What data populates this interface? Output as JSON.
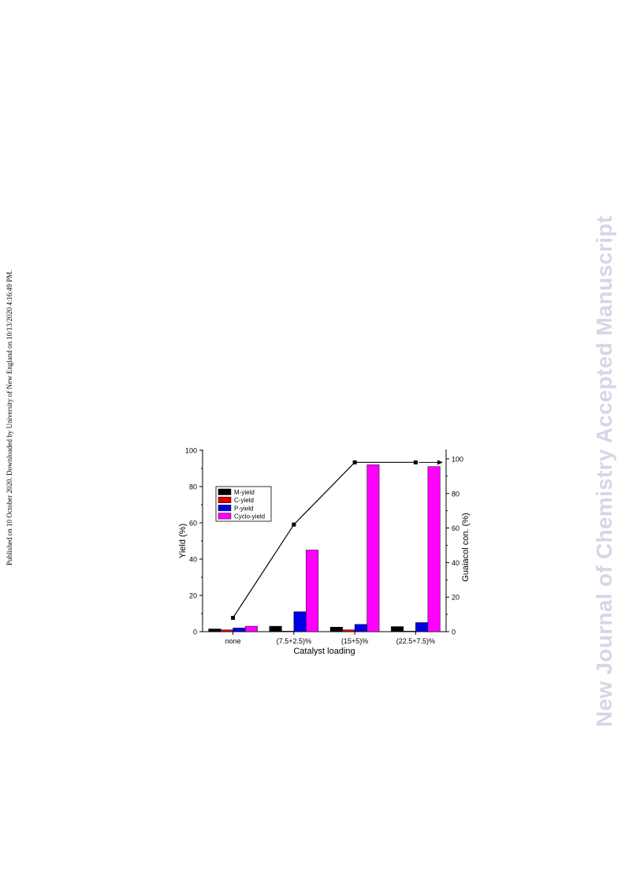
{
  "side_note": "Published on 10 October 2020. Downloaded by University of New England on 10/13/2020 4:16:49 PM.",
  "watermark": "New Journal of Chemistry Accepted Manuscript",
  "chart_data": {
    "type": "bar",
    "xlabel": "Catalyst loading",
    "ylabel": "Yield (%)",
    "y2label": "Guaiacol con. (%)",
    "categories": [
      "none",
      "(7.5+2.5)%",
      "(15+5)%",
      "(22.5+7.5)%"
    ],
    "ylim": [
      0,
      100
    ],
    "y2lim": [
      0,
      105
    ],
    "yticks": [
      0,
      20,
      40,
      60,
      80,
      100
    ],
    "y2ticks": [
      0,
      20,
      40,
      60,
      80,
      100
    ],
    "series": [
      {
        "name": "M-yield",
        "color": "#000000",
        "values": [
          1.5,
          3,
          2.5,
          2.8
        ]
      },
      {
        "name": "C-yield",
        "color": "#e00000",
        "values": [
          1,
          0.3,
          1,
          0.3
        ]
      },
      {
        "name": "P-yield",
        "color": "#0000e6",
        "values": [
          2,
          11,
          4,
          5
        ]
      },
      {
        "name": "Cyclo-yield",
        "color": "#ff00ff",
        "values": [
          3,
          45,
          92,
          91
        ]
      }
    ],
    "line_series": {
      "axis": "right",
      "color": "#000000",
      "values": [
        8,
        62,
        98,
        98
      ]
    },
    "legend_position": "upper-left",
    "grid": false
  }
}
